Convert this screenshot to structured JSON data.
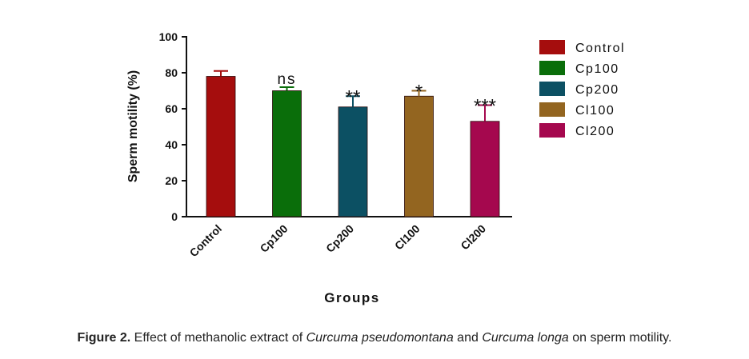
{
  "chart_data": {
    "type": "bar",
    "categories": [
      "Control",
      "Cp100",
      "Cp200",
      "Cl100",
      "Cl200"
    ],
    "values": [
      78,
      70,
      61,
      67,
      53
    ],
    "errors": [
      3,
      2,
      6,
      3,
      9
    ],
    "annotations": [
      "",
      "ns",
      "**",
      "*",
      "***"
    ],
    "colors": [
      "#a50d0d",
      "#0a6e0a",
      "#0c5063",
      "#936520",
      "#a5084e"
    ],
    "xlabel": "Groups",
    "ylabel": "Sperm motility (%)",
    "ylim": [
      0,
      100
    ],
    "yticks": [
      "0",
      "20",
      "40",
      "60",
      "80",
      "100"
    ],
    "legend": {
      "position": "right",
      "entries": [
        "Control",
        "Cp100",
        "Cp200",
        "Cl100",
        "Cl200"
      ]
    }
  },
  "caption": {
    "label": "Figure 2.",
    "text_before": " Effect of methanolic extract of ",
    "species1": "Curcuma pseudomontana",
    "text_middle": " and ",
    "species2": "Curcuma longa",
    "text_after": " on sperm motility."
  }
}
